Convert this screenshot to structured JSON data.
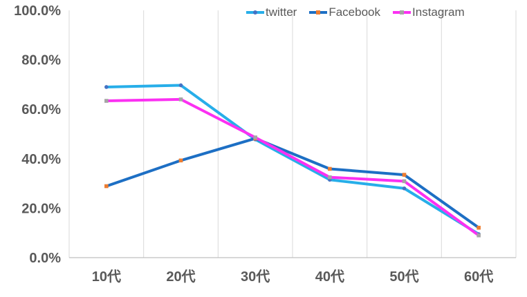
{
  "chart_data": {
    "type": "line",
    "categories": [
      "10代",
      "20代",
      "30代",
      "40代",
      "50代",
      "60代"
    ],
    "series": [
      {
        "name": "twitter",
        "values": [
          69.0,
          69.7,
          47.8,
          31.5,
          28.0,
          9.5
        ],
        "line_color": "#27AEE9",
        "marker_color": "#4472C4",
        "marker": "circle"
      },
      {
        "name": "Facebook",
        "values": [
          28.9,
          39.3,
          48.2,
          35.9,
          33.5,
          12.1
        ],
        "line_color": "#1D6FC4",
        "marker_color": "#ED7D31",
        "marker": "square"
      },
      {
        "name": "Instagram",
        "values": [
          63.4,
          64.0,
          48.6,
          32.5,
          30.9,
          9.0
        ],
        "line_color": "#FB30F2",
        "marker_color": "#A5A5A5",
        "marker": "square"
      }
    ],
    "y_ticks": [
      "100.0%",
      "80.0%",
      "60.0%",
      "40.0%",
      "20.0%",
      "0.0%"
    ],
    "ylim": [
      0,
      100
    ],
    "y_step": 20,
    "grid": "vertical-only",
    "legend_position": "top",
    "title": "",
    "xlabel": "",
    "ylabel": ""
  },
  "colors": {
    "background": "#ffffff",
    "text": "#595959",
    "gridline": "#D9D9D9",
    "axis": "#BFBFBF"
  }
}
